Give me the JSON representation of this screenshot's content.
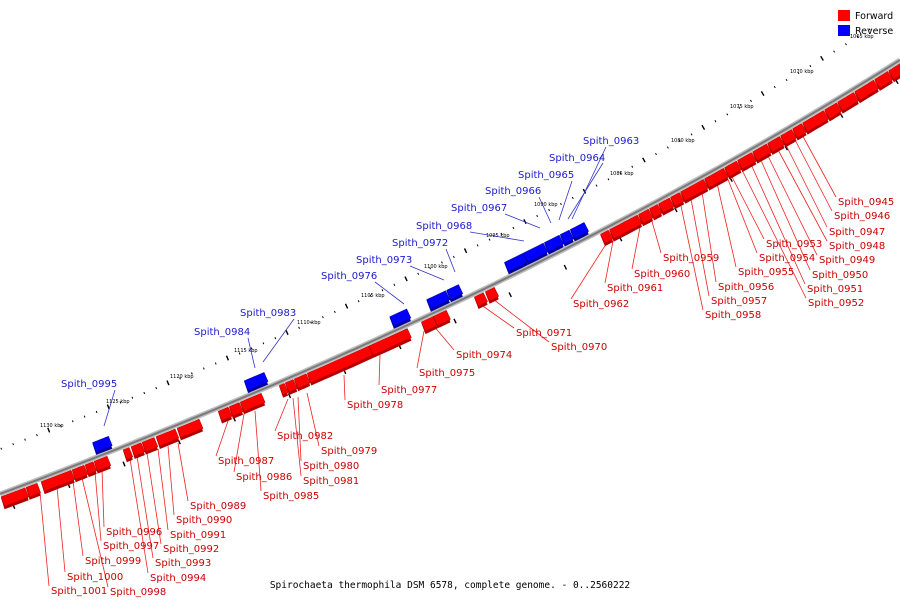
{
  "caption": "Spirochaeta thermophila DSM 6578, complete genome. - 0..2560222",
  "legend": {
    "items": [
      {
        "label": "Forward",
        "color": "#ff0000"
      },
      {
        "label": "Reverse",
        "color": "#0000ff"
      }
    ]
  },
  "colors": {
    "forward": "#ff0000",
    "reverse": "#0000ff",
    "backbone": "#888888",
    "forward_label": "#cc0000",
    "reverse_label": "#1a1acc"
  },
  "scale_ticks": [
    "1130 kbp",
    "1125 kbp",
    "1120 kbp",
    "1115 kbp",
    "1110 kbp",
    "1105 kbp",
    "1100 kbp",
    "1095 kbp",
    "1090 kbp",
    "1085 kbp",
    "1080 kbp",
    "1075 kbp",
    "1070 kbp",
    "1065 kbp"
  ],
  "reverse_genes": [
    "Spith_0963",
    "Spith_0964",
    "Spith_0965",
    "Spith_0966",
    "Spith_0967",
    "Spith_0968",
    "Spith_0972",
    "Spith_0973",
    "Spith_0976",
    "Spith_0983",
    "Spith_0984",
    "Spith_0995"
  ],
  "forward_genes": [
    "Spith_0945",
    "Spith_0946",
    "Spith_0947",
    "Spith_0948",
    "Spith_0949",
    "Spith_0950",
    "Spith_0951",
    "Spith_0952",
    "Spith_0953",
    "Spith_0954",
    "Spith_0955",
    "Spith_0956",
    "Spith_0957",
    "Spith_0958",
    "Spith_0959",
    "Spith_0960",
    "Spith_0961",
    "Spith_0962",
    "Spith_0970",
    "Spith_0971",
    "Spith_0974",
    "Spith_0975",
    "Spith_0977",
    "Spith_0978",
    "Spith_0979",
    "Spith_0980",
    "Spith_0981",
    "Spith_0982",
    "Spith_0985",
    "Spith_0986",
    "Spith_0987",
    "Spith_0989",
    "Spith_0990",
    "Spith_0991",
    "Spith_0992",
    "Spith_0993",
    "Spith_0994",
    "Spith_0996",
    "Spith_0997",
    "Spith_0998",
    "Spith_0999",
    "Spith_1000",
    "Spith_1001"
  ]
}
